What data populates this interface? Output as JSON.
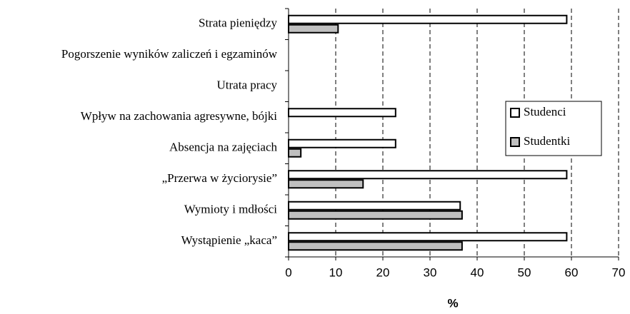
{
  "chart_data": {
    "type": "barh",
    "categories": [
      "Strata pieniędzy",
      "Pogorszenie wyników zaliczeń i egzaminów",
      "Utrata pracy",
      "Wpływ na zachowania agresywne, bójki",
      "Absencja na zajęciach",
      "„Przerwa w życiorysie”",
      "Wymioty i mdłości",
      "Wystąpienie „kaca”"
    ],
    "series": [
      {
        "name": "Studenci",
        "color": "#ffffff",
        "values": [
          59,
          0,
          0,
          22.7,
          22.7,
          59,
          36.4,
          59
        ]
      },
      {
        "name": "Studentki",
        "color": "#c0c0c0",
        "values": [
          10.5,
          0,
          0,
          0,
          2.6,
          15.8,
          36.8,
          36.8
        ]
      }
    ],
    "xlabel": "%",
    "xlim": [
      0,
      70
    ],
    "xticks": [
      0,
      10,
      20,
      30,
      40,
      50,
      60,
      70
    ],
    "grid": true,
    "legend": "right"
  }
}
